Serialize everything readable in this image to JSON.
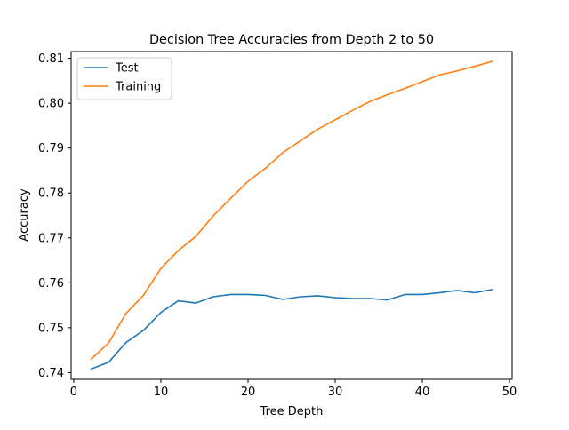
{
  "chart_data": {
    "type": "line",
    "title": "Decision Tree Accuracies from Depth 2 to 50",
    "xlabel": "Tree Depth",
    "ylabel": "Accuracy",
    "xlim": [
      -0.3,
      50.3
    ],
    "ylim": [
      0.7385,
      0.8115
    ],
    "xticks": [
      0,
      10,
      20,
      30,
      40,
      50
    ],
    "yticks": [
      0.74,
      0.75,
      0.76,
      0.77,
      0.78,
      0.79,
      0.8,
      0.81
    ],
    "ytick_labels": [
      "0.74",
      "0.75",
      "0.76",
      "0.77",
      "0.78",
      "0.79",
      "0.80",
      "0.81"
    ],
    "grid": false,
    "legend_position": "top-left",
    "x": [
      2,
      4,
      6,
      8,
      10,
      12,
      14,
      16,
      18,
      20,
      22,
      24,
      26,
      28,
      30,
      32,
      34,
      36,
      38,
      40,
      42,
      44,
      46,
      48
    ],
    "series": [
      {
        "name": "Test",
        "color": "#1f77b4",
        "values": [
          0.7408,
          0.7423,
          0.7467,
          0.7494,
          0.7534,
          0.756,
          0.7555,
          0.7569,
          0.7574,
          0.7574,
          0.7572,
          0.7563,
          0.7569,
          0.7571,
          0.7567,
          0.7565,
          0.7565,
          0.7562,
          0.7574,
          0.7574,
          0.7578,
          0.7583,
          0.7578,
          0.7585
        ]
      },
      {
        "name": "Training",
        "color": "#ff7f0e",
        "values": [
          0.743,
          0.7466,
          0.7532,
          0.7572,
          0.7632,
          0.7672,
          0.7703,
          0.7749,
          0.7788,
          0.7826,
          0.7855,
          0.789,
          0.7916,
          0.7942,
          0.7963,
          0.7984,
          0.8004,
          0.8019,
          0.8033,
          0.8048,
          0.8063,
          0.8072,
          0.8082,
          0.8093
        ]
      }
    ]
  }
}
